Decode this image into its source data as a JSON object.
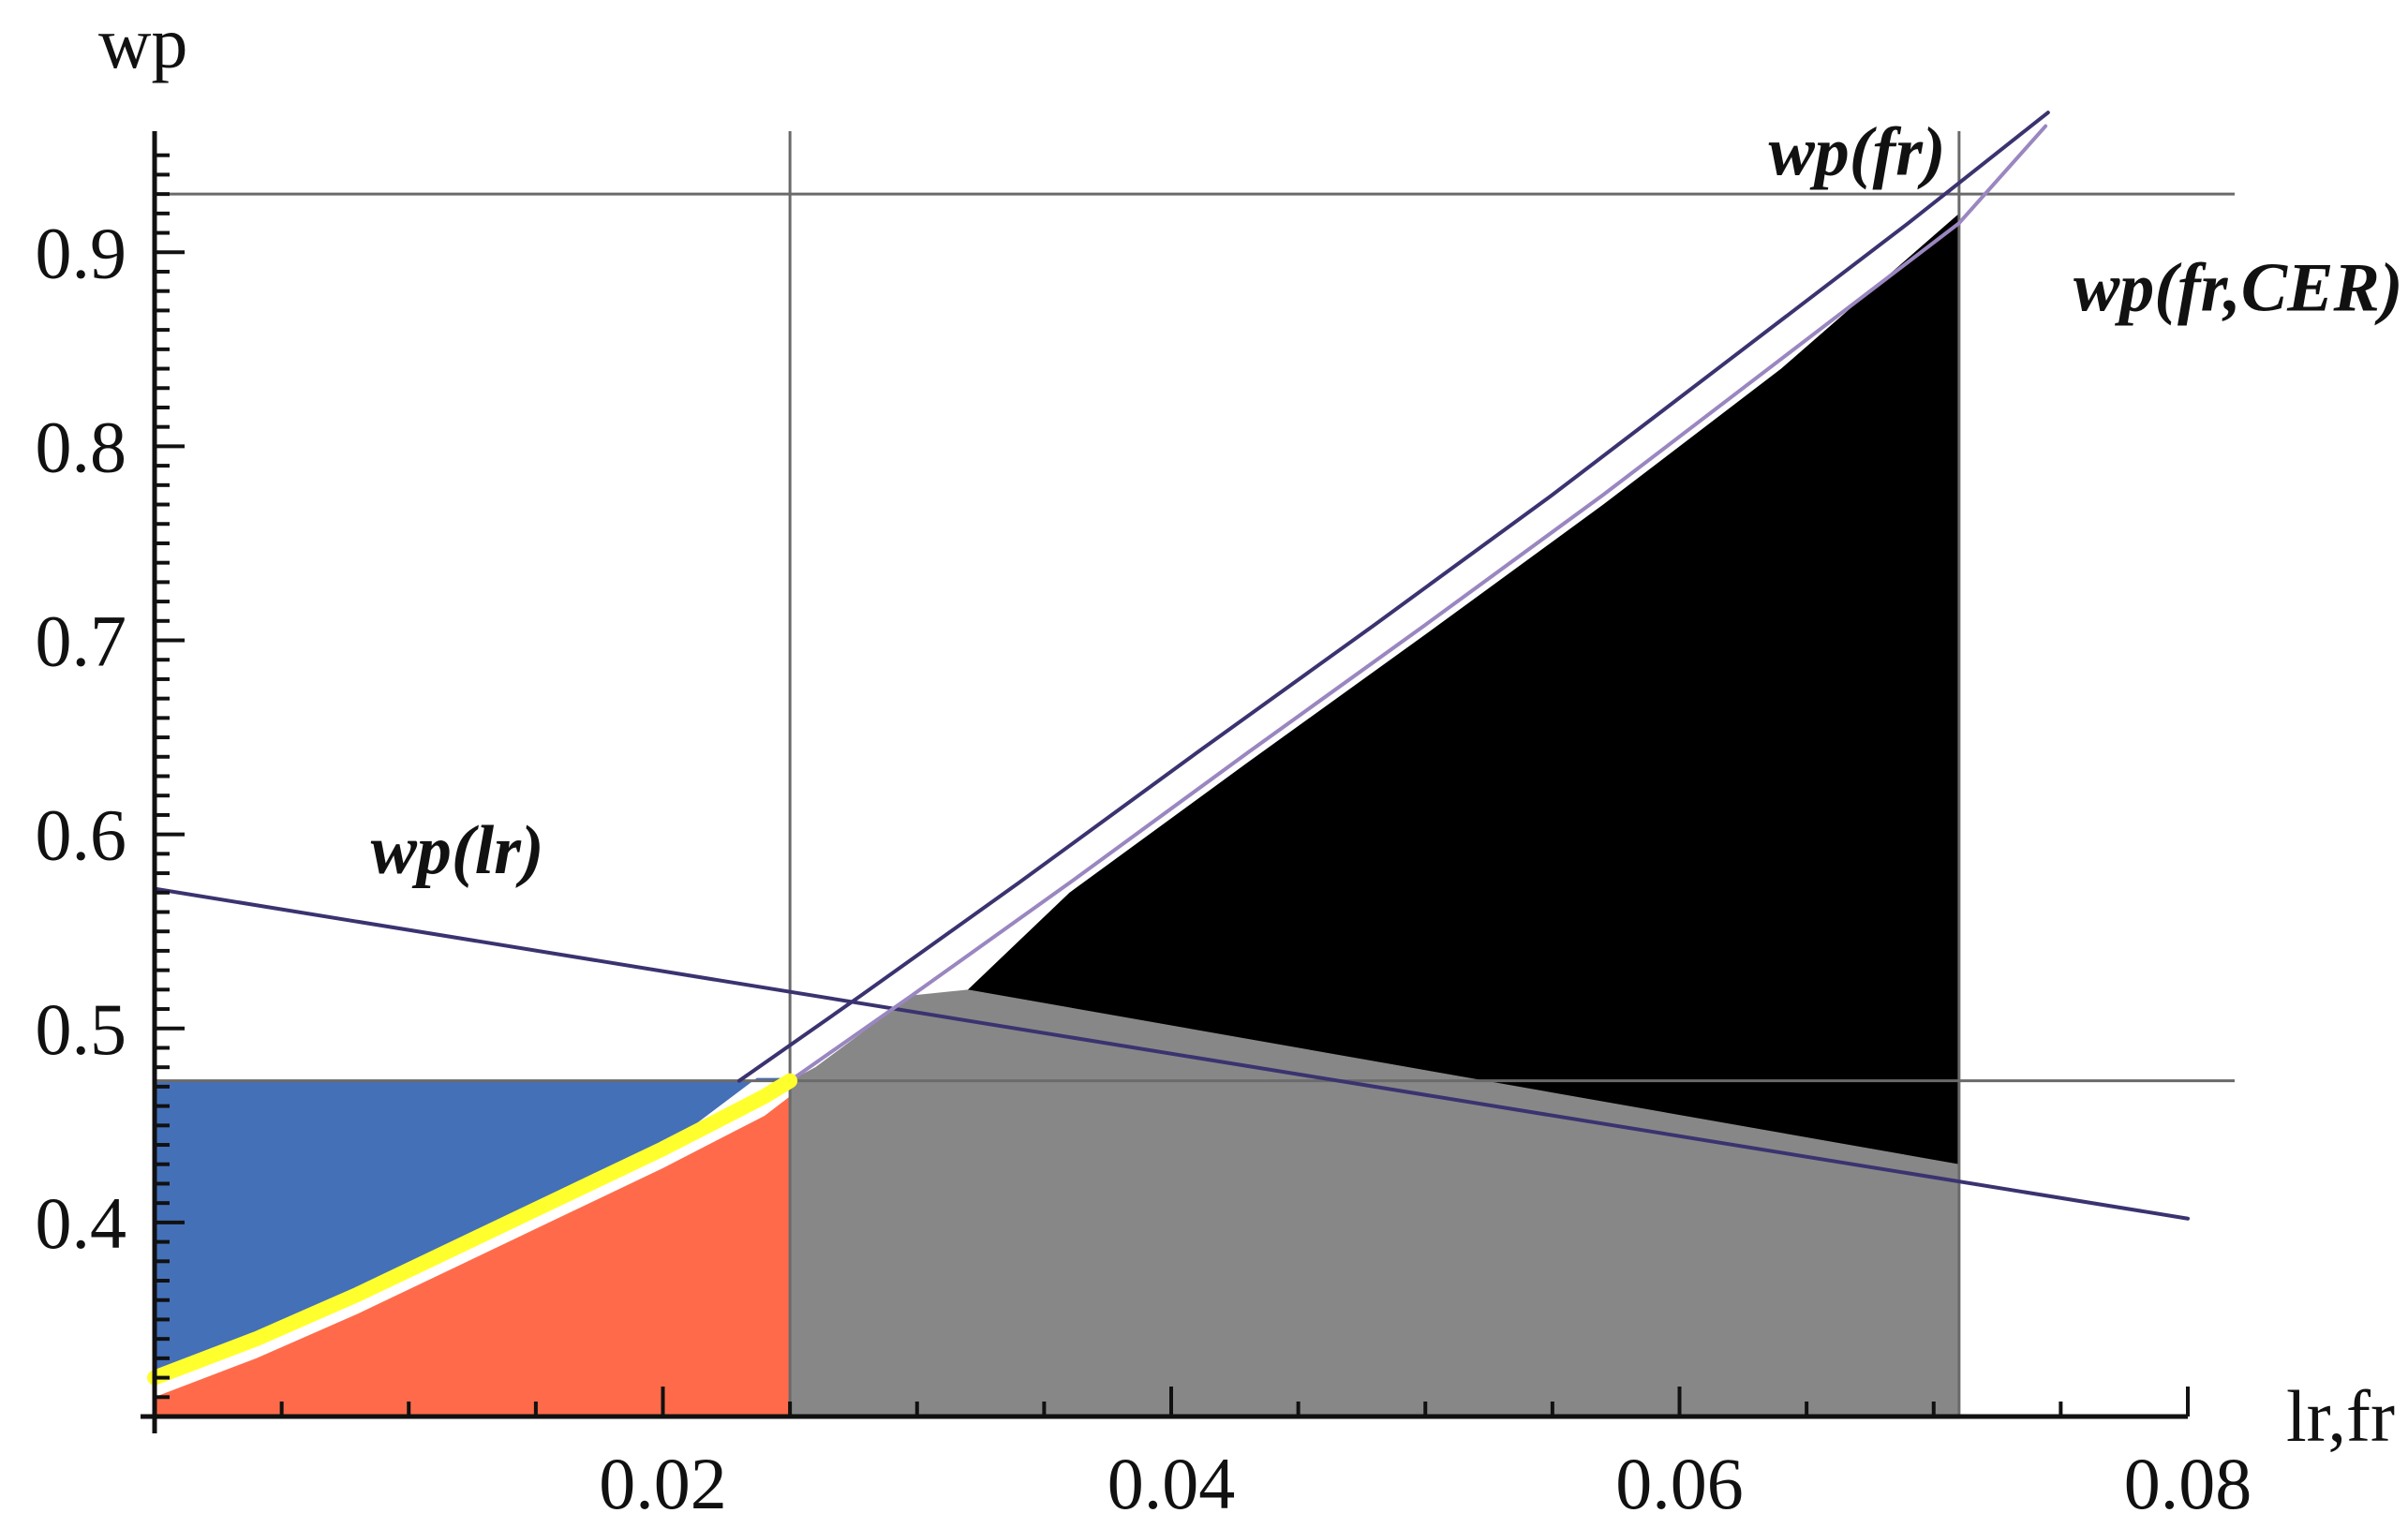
{
  "chart_data": {
    "type": "area",
    "xlabel": "lr,fr",
    "ylabel": "wp",
    "xlim": [
      0,
      0.08
    ],
    "ylim": [
      0.3,
      0.96
    ],
    "x_ticks": [
      0.02,
      0.04,
      0.06,
      0.08
    ],
    "x_tick_labels": [
      "0.02",
      "0.04",
      "0.06",
      "0.08"
    ],
    "y_ticks": [
      0.4,
      0.5,
      0.6,
      0.7,
      0.8,
      0.9
    ],
    "y_tick_labels": [
      "0.4",
      "0.5",
      "0.6",
      "0.7",
      "0.8",
      "0.9"
    ],
    "reference_lines": {
      "vertical": [
        0.025,
        0.071
      ],
      "horizontal": [
        0.473,
        0.93
      ]
    },
    "series": [
      {
        "name": "wp(lr)",
        "x": [
          0,
          0.08
        ],
        "y": [
          0.572,
          0.402
        ],
        "color": "#3a3370"
      },
      {
        "name": "wp(fr)",
        "x": [
          0.023,
          0.0278,
          0.034,
          0.041,
          0.048,
          0.055,
          0.062,
          0.069,
          0.0745
        ],
        "y": [
          0.473,
          0.517,
          0.575,
          0.642,
          0.708,
          0.775,
          0.845,
          0.915,
          0.972
        ],
        "color": "#3a3370"
      },
      {
        "name": "wp(fr,CER)",
        "x": [
          0.025,
          0.0298,
          0.036,
          0.043,
          0.05,
          0.057,
          0.064,
          0.071,
          0.0744
        ],
        "y": [
          0.473,
          0.517,
          0.575,
          0.642,
          0.708,
          0.775,
          0.845,
          0.915,
          0.965
        ],
        "color": "#9a86c0"
      },
      {
        "name": "",
        "x": [
          0,
          0.004,
          0.008,
          0.012,
          0.016,
          0.02,
          0.024,
          0.025
        ],
        "y": [
          0.32,
          0.34,
          0.363,
          0.388,
          0.413,
          0.438,
          0.465,
          0.473
        ],
        "color": "#ffff2e"
      }
    ],
    "regions": [
      {
        "color": "#4470b8",
        "x": [
          0,
          0.025,
          0.025,
          0.0237,
          0.02,
          0.016,
          0.012,
          0.008,
          0.004,
          0
        ],
        "y": [
          0.473,
          0.473,
          0.4745,
          0.4745,
          0.438,
          0.413,
          0.388,
          0.363,
          0.34,
          0.32
        ]
      },
      {
        "color": "#ff6b4a",
        "x": [
          0,
          0.004,
          0.008,
          0.012,
          0.016,
          0.02,
          0.024,
          0.025,
          0.025,
          0
        ],
        "y": [
          0.31,
          0.33,
          0.353,
          0.378,
          0.403,
          0.428,
          0.455,
          0.465,
          0.3,
          0.3
        ]
      },
      {
        "color": "#878787",
        "x": [
          0.025,
          0.026,
          0.0298,
          0.032,
          0.071,
          0.071,
          0.025
        ],
        "y": [
          0.473,
          0.48,
          0.517,
          0.52,
          0.43,
          0.3,
          0.3
        ]
      },
      {
        "color": "#000000",
        "x": [
          0.032,
          0.036,
          0.043,
          0.05,
          0.057,
          0.064,
          0.071,
          0.071
        ],
        "y": [
          0.52,
          0.57,
          0.637,
          0.703,
          0.77,
          0.84,
          0.92,
          0.43
        ]
      }
    ],
    "annotations": [
      {
        "text": "wp(lr)",
        "x": 0.0085,
        "y": 0.58
      },
      {
        "text": "wp(fr)",
        "x": 0.0635,
        "y": 0.94
      },
      {
        "text": "wp(fr,CER)",
        "x": 0.0755,
        "y": 0.87
      }
    ],
    "grid": false,
    "legend": "none"
  }
}
